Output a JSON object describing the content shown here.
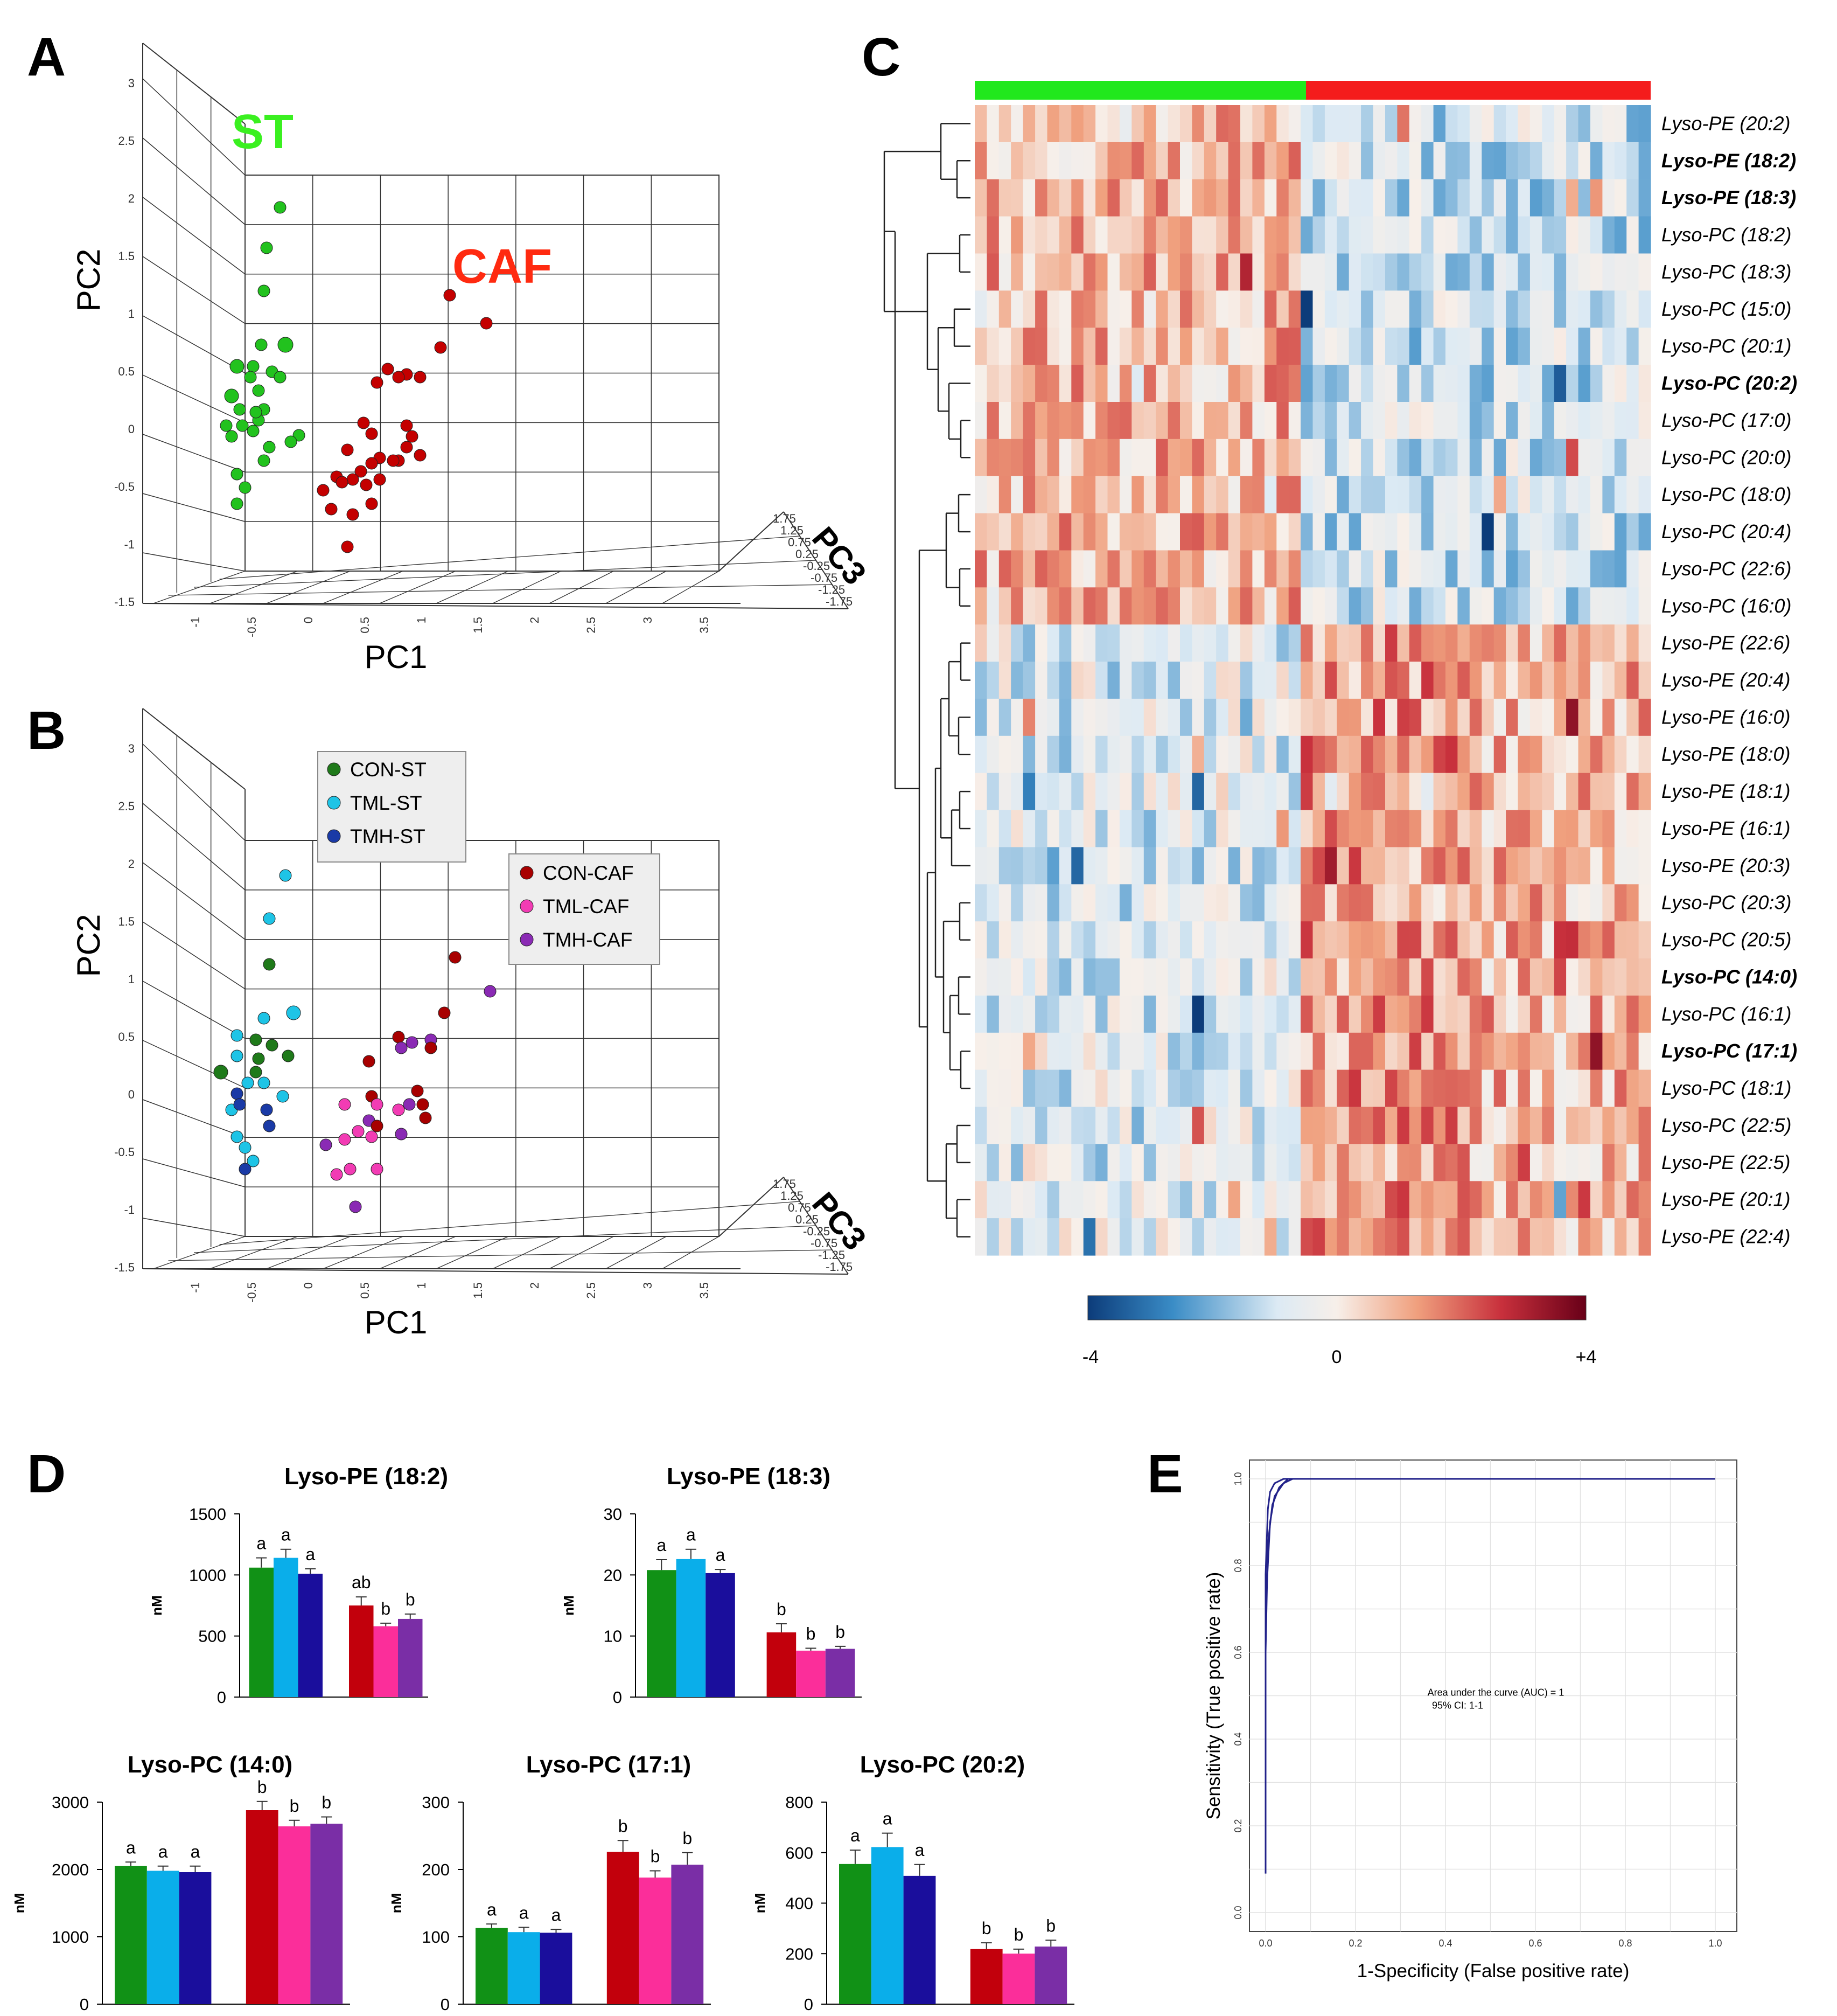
{
  "panels": {
    "a": "A",
    "b": "B",
    "c": "C",
    "d": "D",
    "e": "E"
  },
  "pca_axes": {
    "xlabel": "PC1",
    "ylabel": "PC2",
    "zlabel": "PC3",
    "x_ticks": [
      "-1",
      "-0.5",
      "0",
      "0.5",
      "1",
      "1.5",
      "2",
      "2.5",
      "3",
      "3.5"
    ],
    "y_ticks": [
      "-1.5",
      "-1",
      "-0.5",
      "0",
      "0.5",
      "1",
      "1.5",
      "2",
      "2.5",
      "3"
    ],
    "z_ticks": [
      "1.75",
      "1.25",
      "0.75",
      "0.25",
      "-0.25",
      "-0.75",
      "-1.25",
      "-1.75"
    ]
  },
  "panel_a": {
    "labels": {
      "st": "ST",
      "caf": "CAF"
    },
    "colors": {
      "st": "#22c21e",
      "caf": "#c40000",
      "st_label": "#3af020",
      "caf_label": "#ff2a10"
    }
  },
  "panel_b": {
    "legend_st": [
      {
        "name": "CON-ST",
        "color": "#1f7a1a"
      },
      {
        "name": "TML-ST",
        "color": "#1ec4e6"
      },
      {
        "name": "TMH-ST",
        "color": "#1a3aa6"
      }
    ],
    "legend_caf": [
      {
        "name": "CON-CAF",
        "color": "#a80000"
      },
      {
        "name": "TML-CAF",
        "color": "#f23cb4"
      },
      {
        "name": "TMH-CAF",
        "color": "#8a2ab4"
      }
    ]
  },
  "heatmap": {
    "top_bar_colors": [
      "#21e81d",
      "#f41c1c"
    ],
    "rows": [
      {
        "label": "Lyso-PE (20:2)",
        "bold": false
      },
      {
        "label": "Lyso-PE (18:2)",
        "bold": true
      },
      {
        "label": "Lyso-PE (18:3)",
        "bold": true
      },
      {
        "label": "Lyso-PC (18:2)",
        "bold": false
      },
      {
        "label": "Lyso-PC (18:3)",
        "bold": false
      },
      {
        "label": "Lyso-PC (15:0)",
        "bold": false
      },
      {
        "label": "Lyso-PC (20:1)",
        "bold": false
      },
      {
        "label": "Lyso-PC (20:2)",
        "bold": true
      },
      {
        "label": "Lyso-PC (17:0)",
        "bold": false
      },
      {
        "label": "Lyso-PC (20:0)",
        "bold": false
      },
      {
        "label": "Lyso-PC (18:0)",
        "bold": false
      },
      {
        "label": "Lyso-PC (20:4)",
        "bold": false
      },
      {
        "label": "Lyso-PC (22:6)",
        "bold": false
      },
      {
        "label": "Lyso-PC (16:0)",
        "bold": false
      },
      {
        "label": "Lyso-PE (22:6)",
        "bold": false
      },
      {
        "label": "Lyso-PE (20:4)",
        "bold": false
      },
      {
        "label": "Lyso-PE (16:0)",
        "bold": false
      },
      {
        "label": "Lyso-PE (18:0)",
        "bold": false
      },
      {
        "label": "Lyso-PE (18:1)",
        "bold": false
      },
      {
        "label": "Lyso-PE (16:1)",
        "bold": false
      },
      {
        "label": "Lyso-PE (20:3)",
        "bold": false
      },
      {
        "label": "Lyso-PC (20:3)",
        "bold": false
      },
      {
        "label": "Lyso-PC (20:5)",
        "bold": false
      },
      {
        "label": "Lyso-PC (14:0)",
        "bold": true
      },
      {
        "label": "Lyso-PC (16:1)",
        "bold": false
      },
      {
        "label": "Lyso-PC (17:1)",
        "bold": true
      },
      {
        "label": "Lyso-PC (18:1)",
        "bold": false
      },
      {
        "label": "Lyso-PC (22:5)",
        "bold": false
      },
      {
        "label": "Lyso-PE (22:5)",
        "bold": false
      },
      {
        "label": "Lyso-PE (20:1)",
        "bold": false
      },
      {
        "label": "Lyso-PE (22:4)",
        "bold": false
      }
    ],
    "colorbar": {
      "min_label": "-4",
      "mid_label": "0",
      "max_label": "+4",
      "colors": [
        "#0c3c7a",
        "#3a8cc6",
        "#dceaf4",
        "#f7efe9",
        "#f0a07e",
        "#c8303c",
        "#680018"
      ]
    }
  },
  "chart_data": [
    {
      "type": "bar",
      "title": "Lyso-PE (18:2)",
      "ylabel": "nM",
      "ylim": [
        0,
        1500
      ],
      "yticks": [
        "0",
        "500",
        "1000",
        "1500"
      ],
      "categories": [
        "CON-ST",
        "TML-ST",
        "TMH-ST",
        "CON-CAF",
        "TML-CAF",
        "TMH-CAF"
      ],
      "values": [
        1060,
        1140,
        1010,
        750,
        580,
        640
      ],
      "errors": [
        80,
        70,
        40,
        70,
        25,
        40
      ],
      "letters": [
        "a",
        "a",
        "a",
        "ab",
        "b",
        "b"
      ]
    },
    {
      "type": "bar",
      "title": "Lyso-PE (18:3)",
      "ylabel": "nM",
      "ylim": [
        0,
        30
      ],
      "yticks": [
        "0",
        "10",
        "20",
        "30"
      ],
      "categories": [
        "CON-ST",
        "TML-ST",
        "TMH-ST",
        "CON-CAF",
        "TML-CAF",
        "TMH-CAF"
      ],
      "values": [
        20.8,
        22.6,
        20.3,
        10.6,
        7.6,
        7.9
      ],
      "errors": [
        1.7,
        1.6,
        0.6,
        1.4,
        0.4,
        0.4
      ],
      "letters": [
        "a",
        "a",
        "a",
        "b",
        "b",
        "b"
      ]
    },
    {
      "type": "bar",
      "title": "Lyso-PC (14:0)",
      "ylabel": "nM",
      "ylim": [
        0,
        3000
      ],
      "yticks": [
        "0",
        "1000",
        "2000",
        "3000"
      ],
      "categories": [
        "CON-ST",
        "TML-ST",
        "TMH-ST",
        "CON-CAF",
        "TML-CAF",
        "TMH-CAF"
      ],
      "values": [
        2050,
        1980,
        1960,
        2880,
        2640,
        2680
      ],
      "errors": [
        60,
        70,
        90,
        130,
        90,
        100
      ],
      "letters": [
        "a",
        "a",
        "a",
        "b",
        "b",
        "b"
      ]
    },
    {
      "type": "bar",
      "title": "Lyso-PC (17:1)",
      "ylabel": "nM",
      "ylim": [
        0,
        300
      ],
      "yticks": [
        "0",
        "100",
        "200",
        "300"
      ],
      "categories": [
        "CON-ST",
        "TML-ST",
        "TMH-ST",
        "CON-CAF",
        "TML-CAF",
        "TMH-CAF"
      ],
      "values": [
        113,
        107,
        106,
        226,
        188,
        207
      ],
      "errors": [
        6,
        7,
        5,
        17,
        10,
        18
      ],
      "letters": [
        "a",
        "a",
        "a",
        "b",
        "b",
        "b"
      ]
    },
    {
      "type": "bar",
      "title": "Lyso-PC (20:2)",
      "ylabel": "nM",
      "ylim": [
        0,
        800
      ],
      "yticks": [
        "0",
        "200",
        "400",
        "600",
        "800"
      ],
      "categories": [
        "CON-ST",
        "TML-ST",
        "TMH-ST",
        "CON-CAF",
        "TML-CAF",
        "TMH-CAF"
      ],
      "values": [
        555,
        622,
        508,
        218,
        200,
        228
      ],
      "errors": [
        55,
        55,
        45,
        25,
        18,
        25
      ],
      "letters": [
        "a",
        "a",
        "a",
        "b",
        "b",
        "b"
      ]
    },
    {
      "type": "line",
      "title": "",
      "xlabel": "1-Specificity (False positive rate)",
      "ylabel": "Sensitivity (True positive rate)",
      "xlim": [
        0,
        1
      ],
      "ylim": [
        0,
        1
      ],
      "xticks": [
        "0.0",
        "0.2",
        "0.4",
        "0.6",
        "0.8",
        "1.0"
      ],
      "yticks": [
        "0.0",
        "0.2",
        "0.4",
        "0.6",
        "0.8",
        "1.0"
      ],
      "annotation": [
        "Area under the curve (AUC) = 1",
        "95% CI: 1-1"
      ],
      "series": [
        {
          "name": "roc-1",
          "x": [
            0,
            0,
            0.005,
            0.01,
            0.02,
            0.04,
            1.0
          ],
          "y": [
            0.09,
            0.78,
            0.93,
            0.97,
            0.99,
            1.0,
            1.0
          ]
        },
        {
          "name": "roc-2",
          "x": [
            0,
            0.005,
            0.015,
            0.03,
            0.05,
            1.0
          ],
          "y": [
            0.6,
            0.85,
            0.94,
            0.98,
            1.0,
            1.0
          ]
        },
        {
          "name": "roc-3",
          "x": [
            0,
            0.01,
            0.02,
            0.04,
            0.06,
            1.0
          ],
          "y": [
            0.7,
            0.9,
            0.96,
            0.99,
            1.0,
            1.0
          ]
        }
      ],
      "color": "#22228a"
    }
  ]
}
